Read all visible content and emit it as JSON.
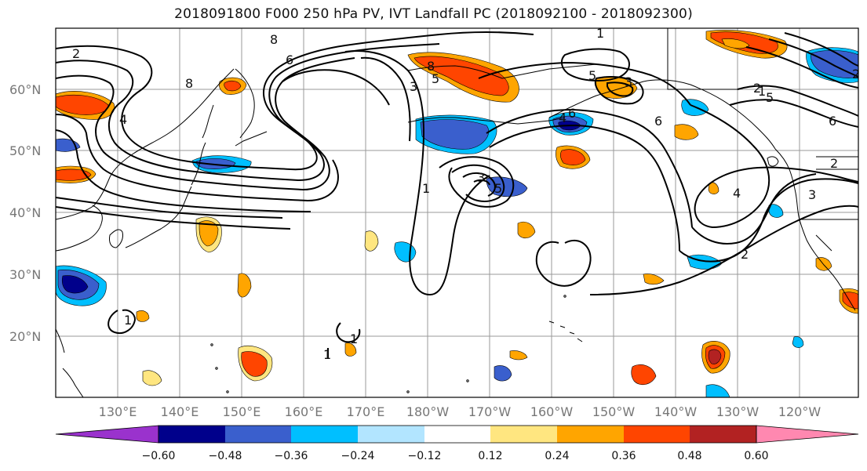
{
  "title": "2018091800 F000 250 hPa PV, IVT Landfall PC (2018092100 - 2018092300)",
  "lat_labels": [
    "60°N",
    "50°N",
    "40°N",
    "30°N",
    "20°N"
  ],
  "lon_labels": [
    "130°E",
    "140°E",
    "150°E",
    "160°E",
    "170°E",
    "180°W",
    "170°W",
    "160°W",
    "150°W",
    "140°W",
    "130°W",
    "120°W"
  ],
  "contour_labels": [
    "2",
    "8",
    "6",
    "4",
    "3",
    "5",
    "8",
    "6",
    "4",
    "5",
    "3",
    "6",
    "2",
    "1",
    "8",
    "6",
    "1",
    "5",
    "4",
    "3",
    "1",
    "2",
    "2",
    "2",
    "3",
    "5",
    "1",
    "1",
    "1"
  ],
  "colorbar": {
    "ticks": [
      "−0.60",
      "−0.48",
      "−0.36",
      "−0.24",
      "−0.12",
      "0.12",
      "0.24",
      "0.36",
      "0.48",
      "0.60"
    ],
    "colors": [
      "#9a32cd",
      "#00008b",
      "#3a5fcd",
      "#00bfff",
      "#b2e5ff",
      "#ffffff",
      "#ffe680",
      "#ffa500",
      "#ff4500",
      "#b22222",
      "#ff88b0"
    ]
  }
}
